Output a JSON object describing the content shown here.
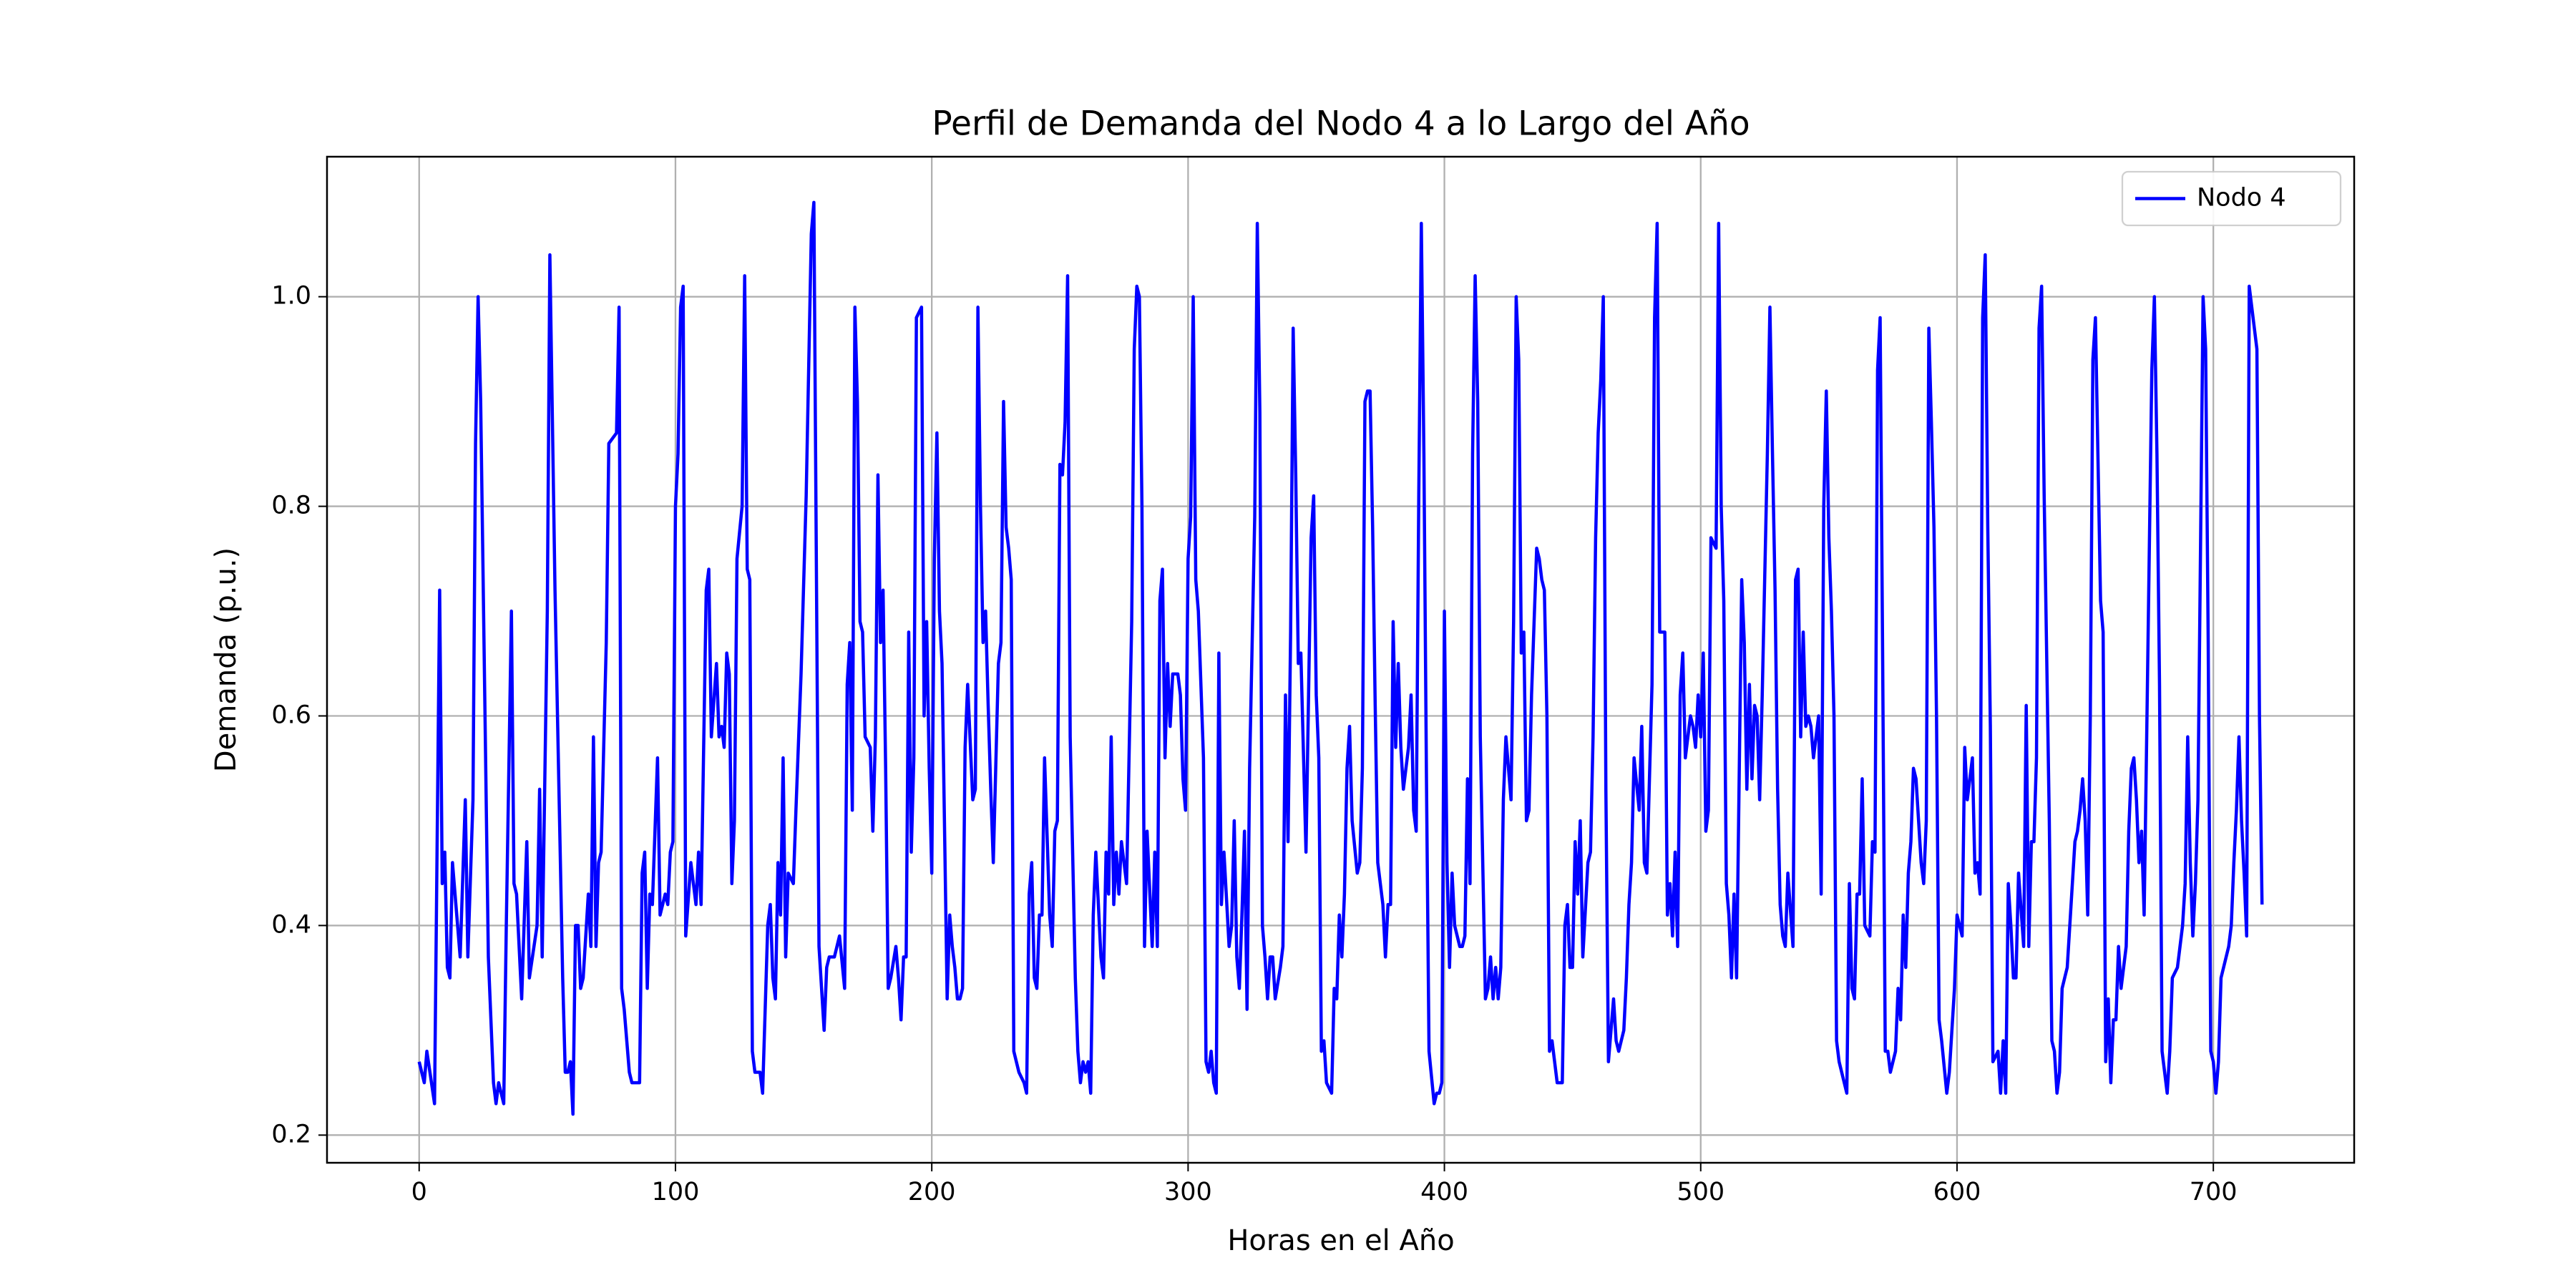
{
  "chart_data": {
    "type": "line",
    "title": "Perfil de Demanda del Nodo 4 a lo Largo del Año",
    "xlabel": "Horas en el Año",
    "ylabel": "Demanda (p.u.)",
    "x": [
      0,
      2,
      3,
      6,
      8,
      9,
      10,
      11,
      12,
      13,
      16,
      18,
      19,
      21,
      22,
      23,
      24,
      27,
      29,
      30,
      31,
      33,
      34,
      36,
      37,
      38,
      40,
      42,
      43,
      46,
      47,
      48,
      50,
      51,
      53,
      56,
      57,
      58,
      59,
      60,
      61,
      62,
      63,
      64,
      66,
      67,
      68,
      69,
      70,
      71,
      73,
      74,
      77,
      78,
      79,
      80,
      82,
      83,
      86,
      87,
      88,
      89,
      90,
      91,
      93,
      94,
      96,
      97,
      98,
      99,
      100,
      101,
      102,
      103,
      104,
      106,
      107,
      108,
      109,
      110,
      111,
      112,
      113,
      114,
      116,
      117,
      118,
      119,
      120,
      121,
      122,
      123,
      124,
      126,
      127,
      128,
      129,
      130,
      131,
      132,
      133,
      134,
      136,
      137,
      138,
      139,
      140,
      141,
      142,
      143,
      144,
      146,
      147,
      149,
      151,
      153,
      154,
      156,
      158,
      159,
      160,
      161,
      162,
      164,
      166,
      167,
      168,
      169,
      170,
      171,
      172,
      173,
      174,
      176,
      177,
      178,
      179,
      180,
      181,
      182,
      183,
      184,
      186,
      187,
      188,
      189,
      190,
      191,
      192,
      193,
      194,
      196,
      197,
      198,
      199,
      200,
      201,
      202,
      203,
      204,
      206,
      207,
      208,
      209,
      210,
      211,
      212,
      213,
      214,
      216,
      217,
      218,
      219,
      220,
      221,
      222,
      223,
      224,
      226,
      227,
      228,
      229,
      230,
      231,
      232,
      233,
      234,
      236,
      237,
      238,
      239,
      240,
      241,
      242,
      243,
      244,
      246,
      247,
      248,
      249,
      250,
      251,
      252,
      253,
      254,
      256,
      257,
      258,
      259,
      260,
      261,
      262,
      263,
      264,
      266,
      267,
      268,
      269,
      270,
      271,
      272,
      273,
      274,
      276,
      278,
      279,
      280,
      281,
      282,
      283,
      284,
      286,
      287,
      288,
      289,
      290,
      291,
      292,
      293,
      294,
      296,
      297,
      298,
      299,
      300,
      301,
      302,
      303,
      304,
      306,
      307,
      308,
      309,
      310,
      311,
      312,
      313,
      314,
      316,
      317,
      318,
      319,
      320,
      321,
      322,
      323,
      324,
      326,
      327,
      328,
      329,
      330,
      331,
      332,
      333,
      334,
      336,
      337,
      338,
      339,
      340,
      341,
      342,
      343,
      344,
      346,
      347,
      348,
      349,
      350,
      351,
      352,
      353,
      354,
      356,
      357,
      358,
      359,
      360,
      361,
      362,
      363,
      364,
      366,
      367,
      368,
      369,
      370,
      371,
      372,
      373,
      374,
      376,
      377,
      378,
      379,
      380,
      381,
      382,
      383,
      384,
      386,
      387,
      388,
      389,
      390,
      391,
      392,
      393,
      394,
      396,
      397,
      398,
      399,
      400,
      401,
      402,
      403,
      404,
      406,
      407,
      408,
      409,
      410,
      411,
      412,
      413,
      414,
      416,
      417,
      418,
      419,
      420,
      421,
      422,
      423,
      424,
      426,
      427,
      428,
      429,
      430,
      431,
      432,
      433,
      434,
      436,
      437,
      438,
      439,
      440,
      441,
      442,
      443,
      444,
      446,
      447,
      448,
      449,
      450,
      451,
      452,
      453,
      454,
      456,
      457,
      458,
      459,
      460,
      461,
      462,
      463,
      464,
      466,
      467,
      468,
      469,
      470,
      471,
      472,
      473,
      474,
      476,
      477,
      478,
      479,
      480,
      481,
      482,
      483,
      484,
      486,
      487,
      488,
      489,
      490,
      491,
      492,
      493,
      494,
      496,
      497,
      498,
      499,
      500,
      501,
      502,
      503,
      504,
      506,
      507,
      508,
      509,
      510,
      511,
      512,
      513,
      514,
      516,
      517,
      518,
      519,
      520,
      521,
      522,
      523,
      524,
      526,
      527,
      528,
      529,
      530,
      531,
      532,
      533,
      534,
      536,
      537,
      538,
      539,
      540,
      541,
      542,
      543,
      544,
      546,
      547,
      548,
      549,
      550,
      551,
      552,
      553,
      554,
      556,
      557,
      558,
      559,
      560,
      561,
      562,
      563,
      564,
      566,
      567,
      568,
      569,
      570,
      571,
      572,
      573,
      574,
      576,
      577,
      578,
      579,
      580,
      581,
      582,
      583,
      584,
      586,
      587,
      588,
      589,
      590,
      591,
      592,
      593,
      594,
      596,
      597,
      598,
      599,
      600,
      601,
      602,
      603,
      604,
      606,
      607,
      608,
      609,
      610,
      611,
      612,
      613,
      614,
      616,
      617,
      618,
      619,
      620,
      621,
      622,
      623,
      624,
      626,
      627,
      628,
      629,
      630,
      631,
      632,
      633,
      634,
      636,
      637,
      638,
      639,
      640,
      641,
      642,
      643,
      644,
      646,
      647,
      648,
      649,
      650,
      651,
      652,
      653,
      654,
      656,
      657,
      658,
      659,
      660,
      661,
      662,
      663,
      664,
      666,
      667,
      668,
      669,
      670,
      671,
      672,
      673,
      674,
      676,
      677,
      678,
      679,
      680,
      681,
      682,
      683,
      684,
      686,
      687,
      688,
      689,
      690,
      691,
      692,
      693,
      694,
      696,
      697,
      698,
      699,
      700,
      701,
      702,
      703,
      704,
      706,
      707,
      708,
      709,
      710,
      711,
      712,
      713,
      714,
      716,
      717,
      718,
      719
    ],
    "series": [
      {
        "name": "Nodo 4",
        "color": "#0000ff",
        "values": [
          0.27,
          0.25,
          0.28,
          0.23,
          0.72,
          0.44,
          0.47,
          0.36,
          0.35,
          0.46,
          0.37,
          0.52,
          0.37,
          0.52,
          0.86,
          1.0,
          0.9,
          0.37,
          0.25,
          0.23,
          0.25,
          0.23,
          0.4,
          0.7,
          0.44,
          0.43,
          0.33,
          0.48,
          0.35,
          0.4,
          0.53,
          0.37,
          0.7,
          1.04,
          0.72,
          0.35,
          0.26,
          0.26,
          0.27,
          0.22,
          0.4,
          0.4,
          0.34,
          0.35,
          0.43,
          0.38,
          0.58,
          0.38,
          0.46,
          0.47,
          0.67,
          0.86,
          0.87,
          0.99,
          0.34,
          0.32,
          0.26,
          0.25,
          0.25,
          0.45,
          0.47,
          0.34,
          0.43,
          0.42,
          0.56,
          0.41,
          0.43,
          0.42,
          0.47,
          0.48,
          0.8,
          0.85,
          0.99,
          1.01,
          0.39,
          0.46,
          0.44,
          0.42,
          0.47,
          0.42,
          0.57,
          0.72,
          0.74,
          0.58,
          0.65,
          0.58,
          0.59,
          0.57,
          0.66,
          0.64,
          0.44,
          0.5,
          0.75,
          0.8,
          1.02,
          0.74,
          0.73,
          0.28,
          0.26,
          0.26,
          0.26,
          0.24,
          0.4,
          0.42,
          0.35,
          0.33,
          0.46,
          0.41,
          0.56,
          0.37,
          0.45,
          0.44,
          0.51,
          0.64,
          0.81,
          1.06,
          1.09,
          0.38,
          0.3,
          0.36,
          0.37,
          0.37,
          0.37,
          0.39,
          0.34,
          0.63,
          0.67,
          0.51,
          0.99,
          0.9,
          0.69,
          0.68,
          0.58,
          0.57,
          0.49,
          0.58,
          0.83,
          0.67,
          0.72,
          0.55,
          0.34,
          0.35,
          0.38,
          0.35,
          0.31,
          0.37,
          0.37,
          0.68,
          0.47,
          0.56,
          0.98,
          0.99,
          0.6,
          0.69,
          0.55,
          0.45,
          0.75,
          0.87,
          0.7,
          0.65,
          0.33,
          0.41,
          0.38,
          0.36,
          0.33,
          0.33,
          0.34,
          0.57,
          0.63,
          0.52,
          0.53,
          0.99,
          0.8,
          0.67,
          0.7,
          0.61,
          0.53,
          0.46,
          0.65,
          0.67,
          0.9,
          0.78,
          0.76,
          0.73,
          0.28,
          0.27,
          0.26,
          0.25,
          0.24,
          0.43,
          0.46,
          0.35,
          0.34,
          0.41,
          0.41,
          0.56,
          0.41,
          0.38,
          0.49,
          0.5,
          0.84,
          0.83,
          0.88,
          1.02,
          0.58,
          0.35,
          0.28,
          0.25,
          0.27,
          0.26,
          0.27,
          0.24,
          0.41,
          0.47,
          0.37,
          0.35,
          0.47,
          0.43,
          0.58,
          0.42,
          0.47,
          0.43,
          0.48,
          0.44,
          0.69,
          0.95,
          1.01,
          1.0,
          0.8,
          0.38,
          0.49,
          0.38,
          0.47,
          0.38,
          0.71,
          0.74,
          0.56,
          0.65,
          0.59,
          0.64,
          0.64,
          0.62,
          0.54,
          0.51,
          0.75,
          0.79,
          1.0,
          0.73,
          0.7,
          0.56,
          0.27,
          0.26,
          0.28,
          0.25,
          0.24,
          0.66,
          0.42,
          0.47,
          0.38,
          0.4,
          0.5,
          0.37,
          0.34,
          0.41,
          0.49,
          0.32,
          0.55,
          0.79,
          1.07,
          0.89,
          0.4,
          0.37,
          0.33,
          0.37,
          0.37,
          0.33,
          0.36,
          0.38,
          0.62,
          0.48,
          0.68,
          0.97,
          0.83,
          0.65,
          0.66,
          0.47,
          0.62,
          0.77,
          0.81,
          0.62,
          0.56,
          0.28,
          0.29,
          0.25,
          0.24,
          0.34,
          0.33,
          0.41,
          0.37,
          0.43,
          0.55,
          0.59,
          0.5,
          0.45,
          0.46,
          0.55,
          0.9,
          0.91,
          0.91,
          0.78,
          0.61,
          0.46,
          0.42,
          0.37,
          0.42,
          0.42,
          0.69,
          0.57,
          0.65,
          0.57,
          0.53,
          0.57,
          0.62,
          0.51,
          0.49,
          0.81,
          1.07,
          0.85,
          0.54,
          0.28,
          0.23,
          0.24,
          0.24,
          0.25,
          0.7,
          0.46,
          0.36,
          0.45,
          0.4,
          0.38,
          0.38,
          0.39,
          0.54,
          0.44,
          0.85,
          1.02,
          0.9,
          0.58,
          0.33,
          0.34,
          0.37,
          0.33,
          0.36,
          0.33,
          0.36,
          0.52,
          0.58,
          0.52,
          0.69,
          1.0,
          0.94,
          0.66,
          0.68,
          0.5,
          0.51,
          0.62,
          0.76,
          0.75,
          0.73,
          0.72,
          0.6,
          0.28,
          0.29,
          0.27,
          0.25,
          0.25,
          0.4,
          0.42,
          0.36,
          0.36,
          0.48,
          0.43,
          0.5,
          0.37,
          0.46,
          0.47,
          0.58,
          0.77,
          0.87,
          0.92,
          1.0,
          0.53,
          0.27,
          0.33,
          0.29,
          0.28,
          0.29,
          0.3,
          0.35,
          0.42,
          0.46,
          0.56,
          0.51,
          0.59,
          0.46,
          0.45,
          0.54,
          0.63,
          0.98,
          1.07,
          0.68,
          0.68,
          0.41,
          0.44,
          0.39,
          0.47,
          0.38,
          0.62,
          0.66,
          0.56,
          0.6,
          0.59,
          0.57,
          0.62,
          0.58,
          0.66,
          0.49,
          0.51,
          0.77,
          0.76,
          1.07,
          0.8,
          0.71,
          0.44,
          0.41,
          0.35,
          0.43,
          0.35,
          0.73,
          0.67,
          0.53,
          0.63,
          0.54,
          0.61,
          0.6,
          0.52,
          0.62,
          0.85,
          0.99,
          0.85,
          0.72,
          0.53,
          0.42,
          0.39,
          0.38,
          0.45,
          0.38,
          0.73,
          0.74,
          0.58,
          0.68,
          0.59,
          0.6,
          0.59,
          0.56,
          0.6,
          0.43,
          0.8,
          0.91,
          0.77,
          0.7,
          0.6,
          0.29,
          0.27,
          0.25,
          0.24,
          0.44,
          0.34,
          0.33,
          0.43,
          0.43,
          0.54,
          0.4,
          0.39,
          0.48,
          0.47,
          0.93,
          0.98,
          0.65,
          0.28,
          0.28,
          0.26,
          0.28,
          0.34,
          0.31,
          0.41,
          0.36,
          0.45,
          0.48,
          0.55,
          0.54,
          0.46,
          0.44,
          0.5,
          0.97,
          0.88,
          0.78,
          0.6,
          0.31,
          0.29,
          0.24,
          0.26,
          0.3,
          0.34,
          0.41,
          0.4,
          0.39,
          0.57,
          0.52,
          0.56,
          0.45,
          0.46,
          0.43,
          0.98,
          1.04,
          0.78,
          0.59,
          0.27,
          0.28,
          0.24,
          0.29,
          0.24,
          0.44,
          0.4,
          0.35,
          0.35,
          0.45,
          0.38,
          0.61,
          0.38,
          0.48,
          0.48,
          0.56,
          0.97,
          1.01,
          0.81,
          0.5,
          0.29,
          0.28,
          0.24,
          0.26,
          0.34,
          0.35,
          0.36,
          0.4,
          0.48,
          0.49,
          0.51,
          0.54,
          0.5,
          0.41,
          0.6,
          0.94,
          0.98,
          0.71,
          0.68,
          0.27,
          0.33,
          0.25,
          0.31,
          0.31,
          0.38,
          0.34,
          0.38,
          0.49,
          0.55,
          0.56,
          0.52,
          0.46,
          0.49,
          0.41,
          0.58,
          0.93,
          1.0,
          0.85,
          0.63,
          0.28,
          0.26,
          0.24,
          0.28,
          0.35,
          0.36,
          0.38,
          0.4,
          0.44,
          0.58,
          0.46,
          0.39,
          0.44,
          0.52,
          1.0,
          0.95,
          0.67,
          0.28,
          0.27,
          0.24,
          0.27,
          0.35,
          0.36,
          0.38,
          0.4,
          0.46,
          0.51,
          0.58,
          0.5,
          0.45,
          0.39,
          1.01,
          0.97,
          0.95,
          0.6,
          0.42
        ]
      }
    ],
    "xlim": [
      -35.95,
      754.95
    ],
    "ylim": [
      0.1736,
      1.1336
    ],
    "xticks": [
      0,
      100,
      200,
      300,
      400,
      500,
      600,
      700
    ],
    "yticks": [
      0.2,
      0.4,
      0.6,
      0.8,
      {
        "value": 1,
        "label": "1.0"
      }
    ],
    "grid": true,
    "legend": "upper right"
  }
}
